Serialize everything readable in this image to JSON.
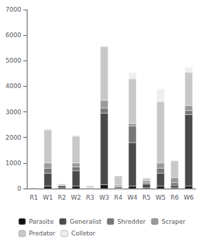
{
  "chart_data": {
    "type": "bar",
    "stacked": true,
    "categories": [
      "R1",
      "W1",
      "R2",
      "W2",
      "R3",
      "W3",
      "R4",
      "W4",
      "R5",
      "W5",
      "R6",
      "W6"
    ],
    "series": [
      {
        "name": "Parasite",
        "color": "#111111",
        "values": [
          10,
          100,
          30,
          100,
          10,
          150,
          20,
          100,
          30,
          100,
          30,
          100
        ]
      },
      {
        "name": "Generalist",
        "color": "#4a4a4a",
        "values": [
          20,
          500,
          80,
          600,
          20,
          2800,
          50,
          1700,
          150,
          500,
          100,
          2800
        ]
      },
      {
        "name": "Shredder",
        "color": "#777777",
        "values": [
          10,
          200,
          20,
          150,
          15,
          200,
          30,
          650,
          50,
          200,
          100,
          150
        ]
      },
      {
        "name": "Scraper",
        "color": "#999999",
        "values": [
          10,
          200,
          30,
          150,
          20,
          300,
          50,
          100,
          80,
          200,
          200,
          200
        ]
      },
      {
        "name": "Predator",
        "color": "#c8c8c8",
        "values": [
          10,
          1300,
          30,
          1050,
          50,
          2100,
          350,
          1750,
          100,
          2400,
          650,
          1300
        ]
      },
      {
        "name": "Colletor",
        "color": "#efefef",
        "values": [
          5,
          50,
          10,
          50,
          10,
          50,
          10,
          250,
          10,
          500,
          50,
          200
        ]
      }
    ],
    "ylim": [
      0,
      7000
    ],
    "yticks": [
      0,
      1000,
      2000,
      3000,
      4000,
      5000,
      6000,
      7000
    ],
    "grid": false,
    "legend": "bottom"
  }
}
